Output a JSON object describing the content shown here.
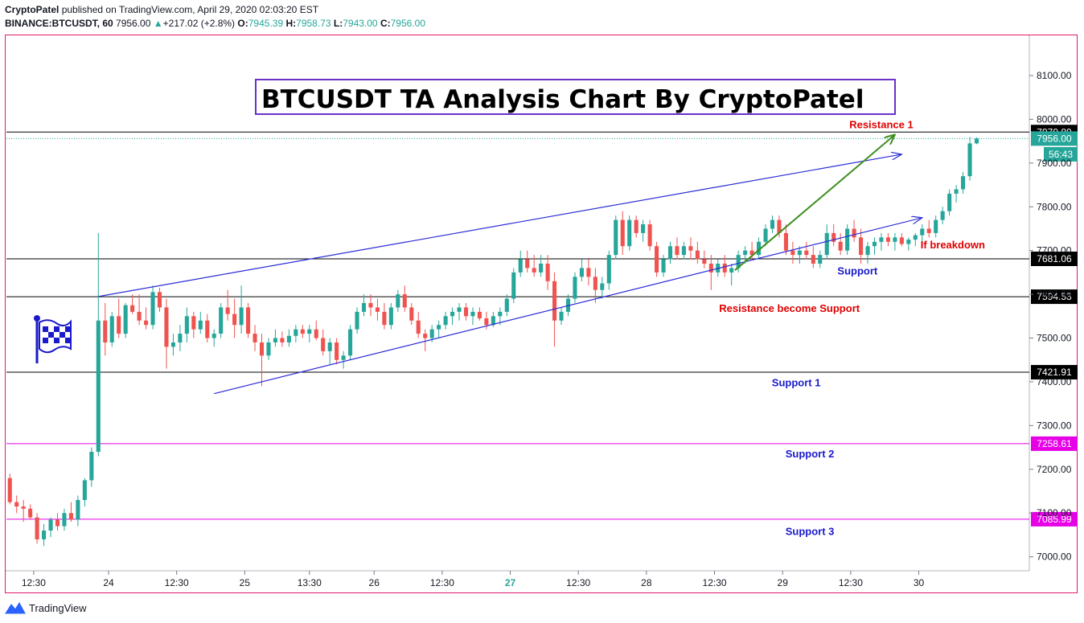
{
  "header": {
    "publisher": "CryptoPatel",
    "published_text": "published on TradingView.com, April 29, 2020 02:03:20 EST",
    "symbol": "BINANCE:BTCUSDT, 60",
    "last": "7956.00",
    "change": "+217.02 (+2.8%)",
    "o_label": "O:",
    "o": "7945.39",
    "h_label": "H:",
    "h": "7958.73",
    "l_label": "L:",
    "l": "7943.00",
    "c_label": "C:",
    "c": "7956.00"
  },
  "title_box": "BTCUSDT TA Analysis Chart By CryptoPatel",
  "footer": {
    "brand": "TradingView"
  },
  "colors": {
    "up": "#26a69a",
    "down": "#ef5350",
    "channel": "#2b2bd6",
    "arrow": "#3e8e1f",
    "pink": "#e600e6",
    "red": "#e00000",
    "blue": "#1a1acc"
  },
  "chart_data": {
    "type": "candlestick",
    "ylim": [
      6970,
      8190
    ],
    "y_ticks": [
      7000,
      7100,
      7200,
      7300,
      7400,
      7500,
      7600,
      7700,
      7800,
      7900,
      8000,
      8100
    ],
    "y_tick_labels": [
      "7000.00",
      "7100.00",
      "7200.00",
      "7300.00",
      "7400.00",
      "7500.00",
      "7600.00",
      "7700.00",
      "7800.00",
      "7900.00",
      "8000.00",
      "8100.00"
    ],
    "x_range": [
      0,
      150
    ],
    "x_ticks": [
      {
        "x": 4,
        "label": "12:30"
      },
      {
        "x": 15,
        "label": "24"
      },
      {
        "x": 25,
        "label": "12:30"
      },
      {
        "x": 35,
        "label": "25"
      },
      {
        "x": 44.5,
        "label": "13:30"
      },
      {
        "x": 54,
        "label": "26"
      },
      {
        "x": 64,
        "label": "12:30"
      },
      {
        "x": 74,
        "label": "27",
        "bold": true
      },
      {
        "x": 84,
        "label": "12:30"
      },
      {
        "x": 94,
        "label": "28"
      },
      {
        "x": 104,
        "label": "12:30"
      },
      {
        "x": 114,
        "label": "29"
      },
      {
        "x": 124,
        "label": "12:30"
      },
      {
        "x": 134,
        "label": "30"
      }
    ],
    "candles": [
      [
        7180,
        7190,
        7120,
        7125
      ],
      [
        7125,
        7140,
        7100,
        7115
      ],
      [
        7115,
        7130,
        7080,
        7110
      ],
      [
        7110,
        7120,
        7085,
        7090
      ],
      [
        7090,
        7100,
        7030,
        7040
      ],
      [
        7040,
        7075,
        7025,
        7060
      ],
      [
        7060,
        7090,
        7045,
        7085
      ],
      [
        7085,
        7100,
        7060,
        7070
      ],
      [
        7070,
        7110,
        7060,
        7100
      ],
      [
        7100,
        7125,
        7080,
        7085
      ],
      [
        7085,
        7140,
        7070,
        7130
      ],
      [
        7130,
        7180,
        7115,
        7175
      ],
      [
        7175,
        7250,
        7160,
        7240
      ],
      [
        7240,
        7740,
        7230,
        7540
      ],
      [
        7540,
        7580,
        7460,
        7490
      ],
      [
        7490,
        7560,
        7480,
        7550
      ],
      [
        7550,
        7590,
        7500,
        7510
      ],
      [
        7510,
        7580,
        7500,
        7575
      ],
      [
        7575,
        7600,
        7555,
        7560
      ],
      [
        7560,
        7600,
        7530,
        7540
      ],
      [
        7540,
        7570,
        7520,
        7530
      ],
      [
        7530,
        7620,
        7520,
        7605
      ],
      [
        7605,
        7615,
        7560,
        7570
      ],
      [
        7570,
        7590,
        7430,
        7480
      ],
      [
        7480,
        7510,
        7460,
        7490
      ],
      [
        7490,
        7530,
        7470,
        7510
      ],
      [
        7510,
        7570,
        7490,
        7550
      ],
      [
        7550,
        7560,
        7500,
        7520
      ],
      [
        7520,
        7560,
        7510,
        7540
      ],
      [
        7540,
        7555,
        7490,
        7500
      ],
      [
        7500,
        7520,
        7480,
        7510
      ],
      [
        7510,
        7580,
        7500,
        7570
      ],
      [
        7570,
        7610,
        7540,
        7555
      ],
      [
        7555,
        7590,
        7500,
        7530
      ],
      [
        7530,
        7620,
        7510,
        7570
      ],
      [
        7570,
        7580,
        7500,
        7510
      ],
      [
        7510,
        7530,
        7470,
        7490
      ],
      [
        7490,
        7510,
        7390,
        7460
      ],
      [
        7460,
        7500,
        7450,
        7490
      ],
      [
        7490,
        7520,
        7480,
        7500
      ],
      [
        7500,
        7515,
        7480,
        7490
      ],
      [
        7490,
        7520,
        7480,
        7505
      ],
      [
        7505,
        7530,
        7490,
        7520
      ],
      [
        7520,
        7530,
        7500,
        7510
      ],
      [
        7510,
        7530,
        7490,
        7520
      ],
      [
        7520,
        7540,
        7495,
        7500
      ],
      [
        7500,
        7520,
        7460,
        7470
      ],
      [
        7470,
        7500,
        7440,
        7490
      ],
      [
        7490,
        7500,
        7440,
        7450
      ],
      [
        7450,
        7470,
        7430,
        7460
      ],
      [
        7460,
        7530,
        7450,
        7520
      ],
      [
        7520,
        7570,
        7510,
        7560
      ],
      [
        7560,
        7600,
        7550,
        7580
      ],
      [
        7580,
        7600,
        7550,
        7570
      ],
      [
        7570,
        7590,
        7540,
        7560
      ],
      [
        7560,
        7580,
        7520,
        7530
      ],
      [
        7530,
        7580,
        7520,
        7570
      ],
      [
        7570,
        7610,
        7560,
        7600
      ],
      [
        7600,
        7620,
        7560,
        7570
      ],
      [
        7570,
        7580,
        7530,
        7540
      ],
      [
        7540,
        7560,
        7500,
        7510
      ],
      [
        7510,
        7520,
        7470,
        7500
      ],
      [
        7500,
        7530,
        7490,
        7520
      ],
      [
        7520,
        7540,
        7500,
        7530
      ],
      [
        7530,
        7560,
        7520,
        7550
      ],
      [
        7550,
        7570,
        7530,
        7560
      ],
      [
        7560,
        7580,
        7540,
        7570
      ],
      [
        7570,
        7580,
        7540,
        7550
      ],
      [
        7550,
        7570,
        7530,
        7560
      ],
      [
        7560,
        7570,
        7540,
        7545
      ],
      [
        7545,
        7560,
        7520,
        7530
      ],
      [
        7530,
        7560,
        7525,
        7550
      ],
      [
        7550,
        7570,
        7530,
        7560
      ],
      [
        7560,
        7600,
        7550,
        7590
      ],
      [
        7590,
        7660,
        7580,
        7650
      ],
      [
        7650,
        7700,
        7640,
        7680
      ],
      [
        7680,
        7700,
        7650,
        7660
      ],
      [
        7660,
        7690,
        7640,
        7650
      ],
      [
        7650,
        7690,
        7640,
        7670
      ],
      [
        7670,
        7690,
        7610,
        7630
      ],
      [
        7630,
        7650,
        7480,
        7540
      ],
      [
        7540,
        7570,
        7530,
        7560
      ],
      [
        7560,
        7600,
        7550,
        7590
      ],
      [
        7590,
        7650,
        7580,
        7640
      ],
      [
        7640,
        7680,
        7630,
        7660
      ],
      [
        7660,
        7680,
        7620,
        7640
      ],
      [
        7640,
        7660,
        7580,
        7610
      ],
      [
        7610,
        7640,
        7590,
        7625
      ],
      [
        7625,
        7700,
        7610,
        7690
      ],
      [
        7690,
        7780,
        7680,
        7770
      ],
      [
        7770,
        7790,
        7690,
        7710
      ],
      [
        7710,
        7780,
        7700,
        7770
      ],
      [
        7770,
        7780,
        7730,
        7740
      ],
      [
        7740,
        7770,
        7720,
        7760
      ],
      [
        7760,
        7770,
        7700,
        7710
      ],
      [
        7710,
        7720,
        7640,
        7650
      ],
      [
        7650,
        7690,
        7640,
        7680
      ],
      [
        7680,
        7720,
        7670,
        7710
      ],
      [
        7710,
        7730,
        7680,
        7690
      ],
      [
        7690,
        7720,
        7680,
        7710
      ],
      [
        7710,
        7730,
        7680,
        7700
      ],
      [
        7700,
        7720,
        7670,
        7680
      ],
      [
        7680,
        7700,
        7660,
        7670
      ],
      [
        7670,
        7690,
        7610,
        7650
      ],
      [
        7650,
        7680,
        7640,
        7670
      ],
      [
        7670,
        7690,
        7640,
        7650
      ],
      [
        7650,
        7670,
        7620,
        7660
      ],
      [
        7660,
        7700,
        7650,
        7690
      ],
      [
        7690,
        7710,
        7670,
        7700
      ],
      [
        7700,
        7720,
        7680,
        7690
      ],
      [
        7690,
        7730,
        7680,
        7720
      ],
      [
        7720,
        7760,
        7710,
        7750
      ],
      [
        7750,
        7780,
        7740,
        7770
      ],
      [
        7770,
        7780,
        7730,
        7740
      ],
      [
        7740,
        7760,
        7690,
        7700
      ],
      [
        7700,
        7720,
        7670,
        7690
      ],
      [
        7690,
        7710,
        7670,
        7700
      ],
      [
        7700,
        7720,
        7680,
        7690
      ],
      [
        7690,
        7710,
        7660,
        7670
      ],
      [
        7670,
        7700,
        7660,
        7690
      ],
      [
        7690,
        7760,
        7680,
        7740
      ],
      [
        7740,
        7760,
        7710,
        7720
      ],
      [
        7720,
        7740,
        7690,
        7700
      ],
      [
        7700,
        7760,
        7690,
        7750
      ],
      [
        7750,
        7770,
        7720,
        7730
      ],
      [
        7730,
        7750,
        7670,
        7690
      ],
      [
        7690,
        7720,
        7670,
        7710
      ],
      [
        7710,
        7730,
        7690,
        7720
      ],
      [
        7720,
        7740,
        7700,
        7730
      ],
      [
        7730,
        7740,
        7710,
        7720
      ],
      [
        7720,
        7740,
        7700,
        7730
      ],
      [
        7730,
        7740,
        7710,
        7715
      ],
      [
        7715,
        7730,
        7700,
        7725
      ],
      [
        7725,
        7740,
        7710,
        7735
      ],
      [
        7735,
        7760,
        7720,
        7750
      ],
      [
        7750,
        7770,
        7730,
        7740
      ],
      [
        7740,
        7780,
        7730,
        7770
      ],
      [
        7770,
        7800,
        7760,
        7790
      ],
      [
        7790,
        7840,
        7780,
        7830
      ],
      [
        7830,
        7850,
        7810,
        7840
      ],
      [
        7840,
        7880,
        7830,
        7870
      ],
      [
        7870,
        7960,
        7860,
        7945
      ],
      [
        7945,
        7959,
        7943,
        7956
      ]
    ],
    "horizontal_levels": [
      {
        "price": 7970.89,
        "label": "7970.89",
        "color": "#000000",
        "kind": "line"
      },
      {
        "price": 7956.0,
        "label": "7956.00",
        "color": "#26a69a",
        "kind": "dotted"
      },
      {
        "price": 7681.06,
        "label": "7681.06",
        "color": "#000000",
        "kind": "line"
      },
      {
        "price": 7594.53,
        "label": "7594.53",
        "color": "#000000",
        "kind": "line"
      },
      {
        "price": 7421.91,
        "label": "7421.91",
        "color": "#000000",
        "kind": "line"
      },
      {
        "price": 7258.61,
        "label": "7258.61",
        "color": "#e600e6",
        "kind": "line"
      },
      {
        "price": 7085.99,
        "label": "7085.99",
        "color": "#e600e6",
        "kind": "line"
      }
    ],
    "countdown_label": "56:43",
    "trendlines": [
      {
        "x1": 13.5,
        "y1": 7595,
        "x2": 131.5,
        "y2": 7920,
        "color": "#2b2bd6",
        "arrow": true
      },
      {
        "x1": 30.5,
        "y1": 7373,
        "x2": 134.5,
        "y2": 7775,
        "color": "#2b2bd6",
        "arrow": true
      },
      {
        "x1": 107,
        "y1": 7655,
        "x2": 130.5,
        "y2": 7965,
        "color": "#3e8e1f",
        "arrow": true
      }
    ],
    "annotations": [
      {
        "text": "Resistance 1",
        "x": 128.5,
        "price": 7980,
        "color": "#e00000"
      },
      {
        "text": "If breakdown",
        "x": 139,
        "price": 7705,
        "color": "#e00000"
      },
      {
        "text": "Support",
        "x": 125,
        "price": 7645,
        "color": "#1a1acc"
      },
      {
        "text": "Resistance become Support",
        "x": 115,
        "price": 7560,
        "color": "#e00000"
      },
      {
        "text": "Support 1",
        "x": 116,
        "price": 7390,
        "color": "#1a1acc"
      },
      {
        "text": "Support 2",
        "x": 118,
        "price": 7227,
        "color": "#1a1acc"
      },
      {
        "text": "Support 3",
        "x": 118,
        "price": 7050,
        "color": "#1a1acc"
      }
    ]
  }
}
